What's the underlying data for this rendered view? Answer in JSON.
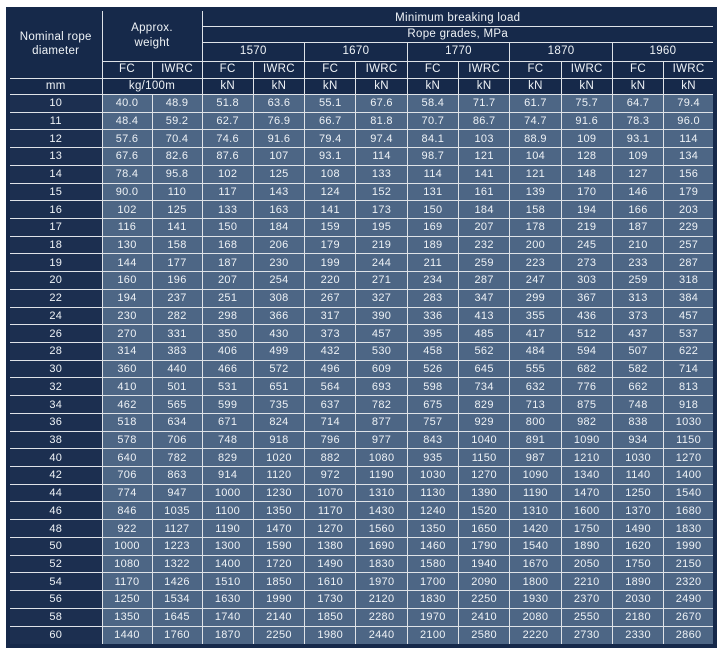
{
  "colors": {
    "header_navy": "#16294a",
    "diameter_column_navy": "#1c2f50",
    "data_cell_slate": "#4d6685",
    "grid_line": "#dfe3e8",
    "text": "#eef2f6",
    "page_background": "#ffffff"
  },
  "table": {
    "header": {
      "nominal_diameter": "Nominal rope diameter",
      "approx_weight": "Approx. weight",
      "min_breaking_load": "Minimum breaking load",
      "rope_grades": "Rope grades, MPa",
      "fc_label": "FC",
      "iwrc_label": "IWRC"
    },
    "grades": [
      "1570",
      "1670",
      "1770",
      "1870",
      "1960"
    ],
    "units": {
      "diameter": "mm",
      "weight": "kg/100m",
      "load": "kN"
    },
    "rows": [
      [
        "10",
        "40.0",
        "48.9",
        "51.8",
        "63.6",
        "55.1",
        "67.6",
        "58.4",
        "71.7",
        "61.7",
        "75.7",
        "64.7",
        "79.4"
      ],
      [
        "11",
        "48.4",
        "59.2",
        "62.7",
        "76.9",
        "66.7",
        "81.8",
        "70.7",
        "86.7",
        "74.7",
        "91.6",
        "78.3",
        "96.0"
      ],
      [
        "12",
        "57.6",
        "70.4",
        "74.6",
        "91.6",
        "79.4",
        "97.4",
        "84.1",
        "103",
        "88.9",
        "109",
        "93.1",
        "114"
      ],
      [
        "13",
        "67.6",
        "82.6",
        "87.6",
        "107",
        "93.1",
        "114",
        "98.7",
        "121",
        "104",
        "128",
        "109",
        "134"
      ],
      [
        "14",
        "78.4",
        "95.8",
        "102",
        "125",
        "108",
        "133",
        "114",
        "141",
        "121",
        "148",
        "127",
        "156"
      ],
      [
        "15",
        "90.0",
        "110",
        "117",
        "143",
        "124",
        "152",
        "131",
        "161",
        "139",
        "170",
        "146",
        "179"
      ],
      [
        "16",
        "102",
        "125",
        "133",
        "163",
        "141",
        "173",
        "150",
        "184",
        "158",
        "194",
        "166",
        "203"
      ],
      [
        "17",
        "116",
        "141",
        "150",
        "184",
        "159",
        "195",
        "169",
        "207",
        "178",
        "219",
        "187",
        "229"
      ],
      [
        "18",
        "130",
        "158",
        "168",
        "206",
        "179",
        "219",
        "189",
        "232",
        "200",
        "245",
        "210",
        "257"
      ],
      [
        "19",
        "144",
        "177",
        "187",
        "230",
        "199",
        "244",
        "211",
        "259",
        "223",
        "273",
        "233",
        "287"
      ],
      [
        "20",
        "160",
        "196",
        "207",
        "254",
        "220",
        "271",
        "234",
        "287",
        "247",
        "303",
        "259",
        "318"
      ],
      [
        "22",
        "194",
        "237",
        "251",
        "308",
        "267",
        "327",
        "283",
        "347",
        "299",
        "367",
        "313",
        "384"
      ],
      [
        "24",
        "230",
        "282",
        "298",
        "366",
        "317",
        "390",
        "336",
        "413",
        "355",
        "436",
        "373",
        "457"
      ],
      [
        "26",
        "270",
        "331",
        "350",
        "430",
        "373",
        "457",
        "395",
        "485",
        "417",
        "512",
        "437",
        "537"
      ],
      [
        "28",
        "314",
        "383",
        "406",
        "499",
        "432",
        "530",
        "458",
        "562",
        "484",
        "594",
        "507",
        "622"
      ],
      [
        "30",
        "360",
        "440",
        "466",
        "572",
        "496",
        "609",
        "526",
        "645",
        "555",
        "682",
        "582",
        "714"
      ],
      [
        "32",
        "410",
        "501",
        "531",
        "651",
        "564",
        "693",
        "598",
        "734",
        "632",
        "776",
        "662",
        "813"
      ],
      [
        "34",
        "462",
        "565",
        "599",
        "735",
        "637",
        "782",
        "675",
        "829",
        "713",
        "875",
        "748",
        "918"
      ],
      [
        "36",
        "518",
        "634",
        "671",
        "824",
        "714",
        "877",
        "757",
        "929",
        "800",
        "982",
        "838",
        "1030"
      ],
      [
        "38",
        "578",
        "706",
        "748",
        "918",
        "796",
        "977",
        "843",
        "1040",
        "891",
        "1090",
        "934",
        "1150"
      ],
      [
        "40",
        "640",
        "782",
        "829",
        "1020",
        "882",
        "1080",
        "935",
        "1150",
        "987",
        "1210",
        "1030",
        "1270"
      ],
      [
        "42",
        "706",
        "863",
        "914",
        "1120",
        "972",
        "1190",
        "1030",
        "1270",
        "1090",
        "1340",
        "1140",
        "1400"
      ],
      [
        "44",
        "774",
        "947",
        "1000",
        "1230",
        "1070",
        "1310",
        "1130",
        "1390",
        "1190",
        "1470",
        "1250",
        "1540"
      ],
      [
        "46",
        "846",
        "1035",
        "1100",
        "1350",
        "1170",
        "1430",
        "1240",
        "1520",
        "1310",
        "1600",
        "1370",
        "1680"
      ],
      [
        "48",
        "922",
        "1127",
        "1190",
        "1470",
        "1270",
        "1560",
        "1350",
        "1650",
        "1420",
        "1750",
        "1490",
        "1830"
      ],
      [
        "50",
        "1000",
        "1223",
        "1300",
        "1590",
        "1380",
        "1690",
        "1460",
        "1790",
        "1540",
        "1890",
        "1620",
        "1990"
      ],
      [
        "52",
        "1080",
        "1322",
        "1400",
        "1720",
        "1490",
        "1830",
        "1580",
        "1940",
        "1670",
        "2050",
        "1750",
        "2150"
      ],
      [
        "54",
        "1170",
        "1426",
        "1510",
        "1850",
        "1610",
        "1970",
        "1700",
        "2090",
        "1800",
        "2210",
        "1890",
        "2320"
      ],
      [
        "56",
        "1250",
        "1534",
        "1630",
        "1990",
        "1730",
        "2120",
        "1830",
        "2250",
        "1930",
        "2370",
        "2030",
        "2490"
      ],
      [
        "58",
        "1350",
        "1645",
        "1740",
        "2140",
        "1850",
        "2280",
        "1970",
        "2410",
        "2080",
        "2550",
        "2180",
        "2670"
      ],
      [
        "60",
        "1440",
        "1760",
        "1870",
        "2250",
        "1980",
        "2440",
        "2100",
        "2580",
        "2220",
        "2730",
        "2330",
        "2860"
      ]
    ]
  }
}
